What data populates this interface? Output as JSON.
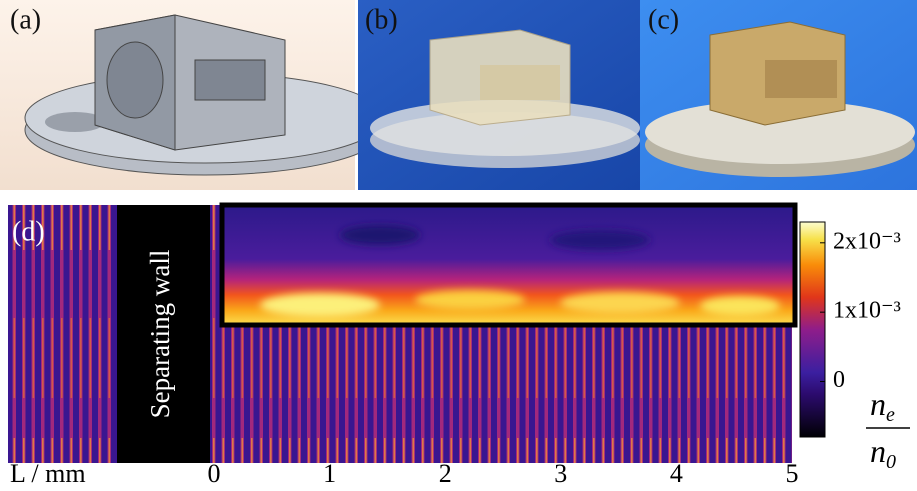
{
  "panels": {
    "a": "(a)",
    "b": "(b)",
    "c": "(c)",
    "d": "(d)"
  },
  "wall_label": "Separating wall",
  "x_axis": {
    "label": "L / mm",
    "xlim": [
      0,
      5
    ],
    "xticks": [
      0,
      1,
      2,
      3,
      4,
      5
    ]
  },
  "colorbar": {
    "clim": [
      -0.0008,
      0.0023
    ],
    "ticks": [
      {
        "value": 0.002,
        "label": "2x10⁻³"
      },
      {
        "value": 0.001,
        "label": "1x10⁻³"
      },
      {
        "value": 0,
        "label": "0"
      }
    ],
    "label": {
      "numerator": {
        "base": "n",
        "sub": "e"
      },
      "denominator": {
        "base": "n",
        "sub": "0"
      }
    }
  }
}
